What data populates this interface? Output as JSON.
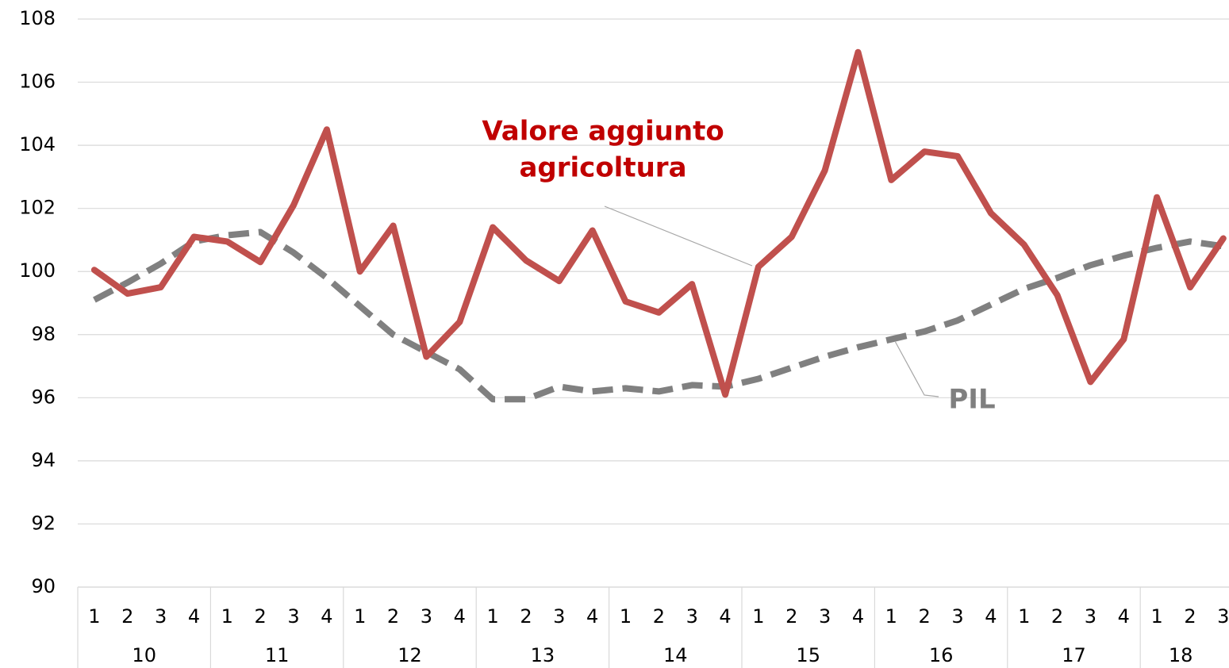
{
  "chart_data": {
    "type": "line",
    "categories": [
      "1",
      "2",
      "3",
      "4",
      "1",
      "2",
      "3",
      "4",
      "1",
      "2",
      "3",
      "4",
      "1",
      "2",
      "3",
      "4",
      "1",
      "2",
      "3",
      "4",
      "1",
      "2",
      "3",
      "4",
      "1",
      "2",
      "3",
      "4",
      "1",
      "2",
      "3",
      "4",
      "1",
      "2",
      "3"
    ],
    "groups": [
      {
        "label": "10",
        "size": 4
      },
      {
        "label": "11",
        "size": 4
      },
      {
        "label": "12",
        "size": 4
      },
      {
        "label": "13",
        "size": 4
      },
      {
        "label": "14",
        "size": 4
      },
      {
        "label": "15",
        "size": 4
      },
      {
        "label": "16",
        "size": 4
      },
      {
        "label": "17",
        "size": 4
      },
      {
        "label": "18",
        "size": 3
      }
    ],
    "series": [
      {
        "color": "#c0504d",
        "line_style": "solid",
        "values": [
          100.05,
          99.3,
          99.5,
          101.1,
          100.95,
          100.3,
          102.1,
          104.5,
          100.0,
          101.45,
          97.3,
          98.4,
          101.4,
          100.35,
          99.7,
          101.3,
          99.05,
          98.7,
          99.6,
          96.1,
          100.15,
          101.1,
          103.2,
          106.95,
          102.9,
          103.8,
          103.65,
          101.85,
          100.85,
          99.25,
          96.5,
          97.85,
          102.35,
          99.5,
          101.05
        ]
      },
      {
        "color": "#808080",
        "line_style": "dashed",
        "values": [
          99.1,
          99.65,
          100.25,
          100.95,
          101.15,
          101.25,
          100.6,
          99.8,
          98.9,
          98.0,
          97.45,
          96.9,
          95.95,
          95.95,
          96.35,
          96.2,
          96.3,
          96.2,
          96.4,
          96.35,
          96.6,
          96.95,
          97.3,
          97.6,
          97.85,
          98.1,
          98.45,
          98.95,
          99.45,
          99.8,
          100.2,
          100.5,
          100.75,
          100.95,
          100.8
        ]
      }
    ],
    "annotations": [
      {
        "text": [
          "Valore aggiunto",
          "agricoltura"
        ],
        "color": "#c00000"
      },
      {
        "text": [
          "PIL"
        ],
        "color": "#7f7f7f"
      }
    ],
    "ylim": [
      90,
      108
    ],
    "yticks": [
      90,
      92,
      94,
      96,
      98,
      100,
      102,
      104,
      106,
      108
    ],
    "grid": true
  }
}
